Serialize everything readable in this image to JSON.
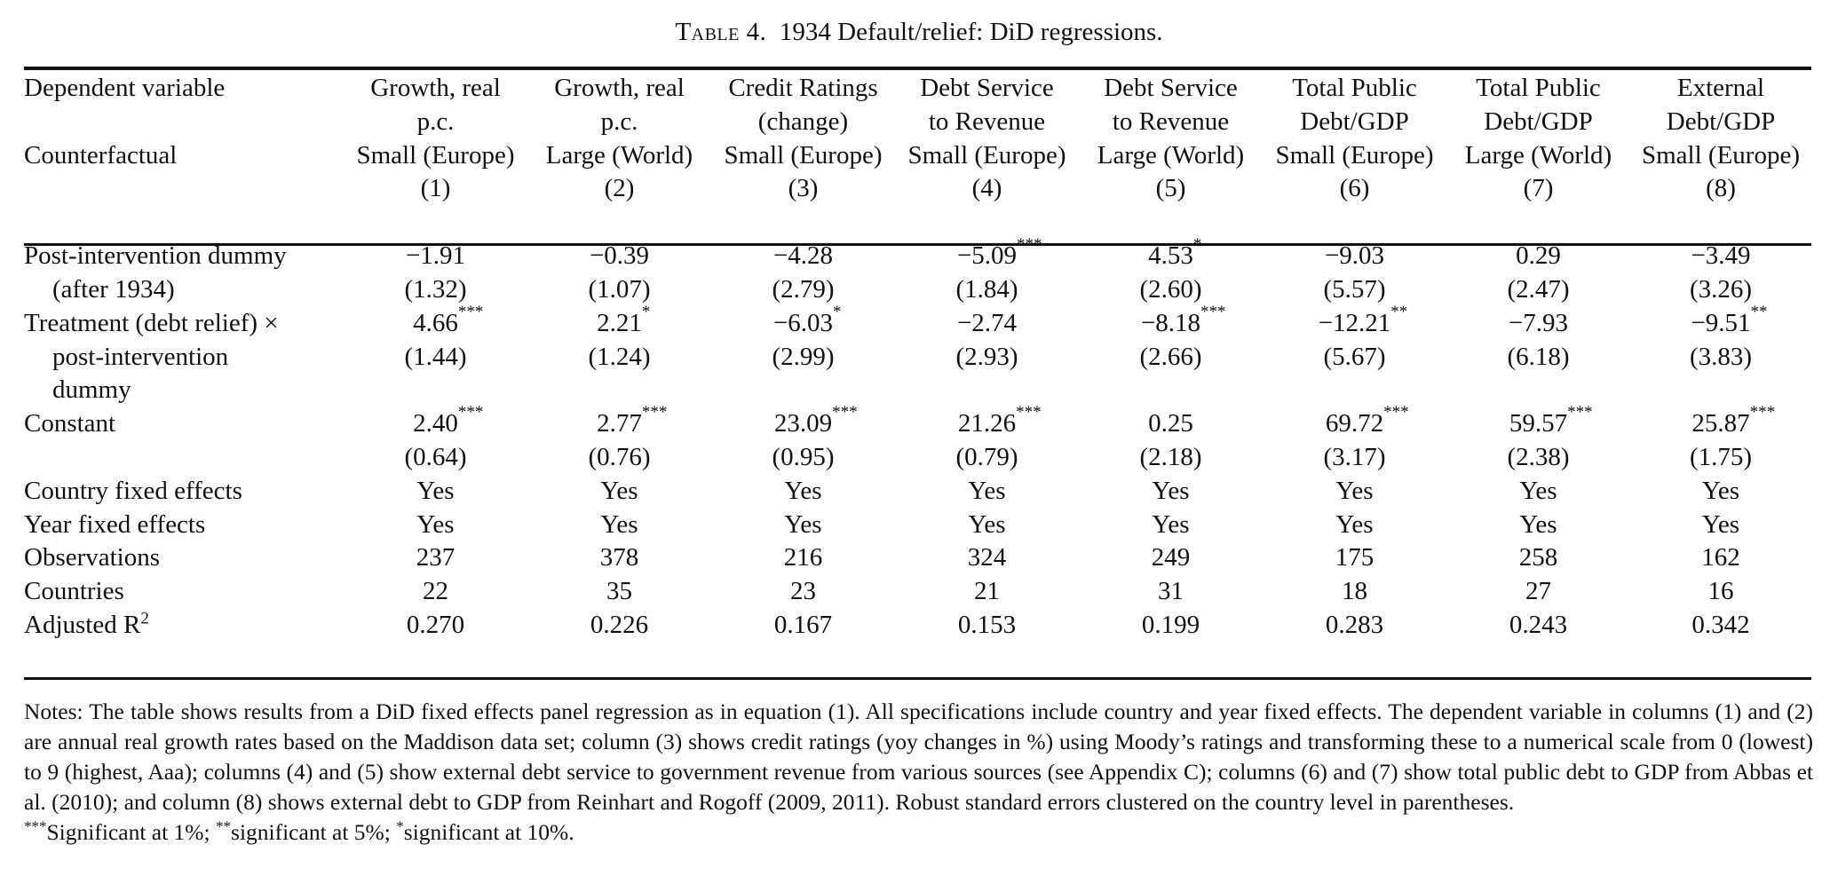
{
  "caption": {
    "label": "Table 4.",
    "title": "1934 Default/relief: DiD regressions."
  },
  "header": {
    "dep_label": "Dependent variable",
    "cf_label": "Counterfactual",
    "columns": [
      {
        "dep1": "Growth, real",
        "dep2": "p.c.",
        "cf": "Small (Europe)",
        "num": "(1)"
      },
      {
        "dep1": "Growth, real",
        "dep2": "p.c.",
        "cf": "Large (World)",
        "num": "(2)"
      },
      {
        "dep1": "Credit Ratings",
        "dep2": "(change)",
        "cf": "Small (Europe)",
        "num": "(3)"
      },
      {
        "dep1": "Debt Service",
        "dep2": "to Revenue",
        "cf": "Small (Europe)",
        "num": "(4)"
      },
      {
        "dep1": "Debt Service",
        "dep2": "to Revenue",
        "cf": "Large (World)",
        "num": "(5)"
      },
      {
        "dep1": "Total Public",
        "dep2": "Debt/GDP",
        "cf": "Small (Europe)",
        "num": "(6)"
      },
      {
        "dep1": "Total Public",
        "dep2": "Debt/GDP",
        "cf": "Large (World)",
        "num": "(7)"
      },
      {
        "dep1": "External",
        "dep2": "Debt/GDP",
        "cf": "Small (Europe)",
        "num": "(8)"
      }
    ]
  },
  "coef_rows": [
    {
      "label1": "Post-intervention dummy",
      "label2": "(after 1934)",
      "label3": "",
      "coef": [
        {
          "v": "−1.91",
          "s": ""
        },
        {
          "v": "−0.39",
          "s": ""
        },
        {
          "v": "−4.28",
          "s": ""
        },
        {
          "v": "−5.09",
          "s": "***"
        },
        {
          "v": "4.53",
          "s": "*"
        },
        {
          "v": "−9.03",
          "s": ""
        },
        {
          "v": "0.29",
          "s": ""
        },
        {
          "v": "−3.49",
          "s": ""
        }
      ],
      "se": [
        "(1.32)",
        "(1.07)",
        "(2.79)",
        "(1.84)",
        "(2.60)",
        "(5.57)",
        "(2.47)",
        "(3.26)"
      ]
    },
    {
      "label1": "Treatment (debt relief) ×",
      "label2": "post-intervention",
      "label3": "dummy",
      "coef": [
        {
          "v": "4.66",
          "s": "***"
        },
        {
          "v": "2.21",
          "s": "*"
        },
        {
          "v": "−6.03",
          "s": "*"
        },
        {
          "v": "−2.74",
          "s": ""
        },
        {
          "v": "−8.18",
          "s": "***"
        },
        {
          "v": "−12.21",
          "s": "**"
        },
        {
          "v": "−7.93",
          "s": ""
        },
        {
          "v": "−9.51",
          "s": "**"
        }
      ],
      "se": [
        "(1.44)",
        "(1.24)",
        "(2.99)",
        "(2.93)",
        "(2.66)",
        "(5.67)",
        "(6.18)",
        "(3.83)"
      ]
    },
    {
      "label1": "Constant",
      "label2": "",
      "label3": "",
      "coef": [
        {
          "v": "2.40",
          "s": "***"
        },
        {
          "v": "2.77",
          "s": "***"
        },
        {
          "v": "23.09",
          "s": "***"
        },
        {
          "v": "21.26",
          "s": "***"
        },
        {
          "v": "0.25",
          "s": ""
        },
        {
          "v": "69.72",
          "s": "***"
        },
        {
          "v": "59.57",
          "s": "***"
        },
        {
          "v": "25.87",
          "s": "***"
        }
      ],
      "se": [
        "(0.64)",
        "(0.76)",
        "(0.95)",
        "(0.79)",
        "(2.18)",
        "(3.17)",
        "(2.38)",
        "(1.75)"
      ]
    }
  ],
  "stat_rows": [
    {
      "label": "Country fixed effects",
      "sup": "",
      "values": [
        "Yes",
        "Yes",
        "Yes",
        "Yes",
        "Yes",
        "Yes",
        "Yes",
        "Yes"
      ]
    },
    {
      "label": "Year fixed effects",
      "sup": "",
      "values": [
        "Yes",
        "Yes",
        "Yes",
        "Yes",
        "Yes",
        "Yes",
        "Yes",
        "Yes"
      ]
    },
    {
      "label": "Observations",
      "sup": "",
      "values": [
        "237",
        "378",
        "216",
        "324",
        "249",
        "175",
        "258",
        "162"
      ]
    },
    {
      "label": "Countries",
      "sup": "",
      "values": [
        "22",
        "35",
        "23",
        "21",
        "31",
        "18",
        "27",
        "16"
      ]
    },
    {
      "label": "Adjusted R",
      "sup": "2",
      "values": [
        "0.270",
        "0.226",
        "0.167",
        "0.153",
        "0.199",
        "0.283",
        "0.243",
        "0.342"
      ]
    }
  ],
  "notes": {
    "text": "Notes: The table shows results from a DiD fixed effects panel regression as in equation (1). All specifications include country and year fixed effects. The dependent variable in columns (1) and (2) are annual real growth rates based on the Maddison data set; column (3) shows credit ratings (yoy changes in %) using Moody’s ratings and transforming these to a numerical scale from 0 (lowest) to 9 (highest, Aaa); columns (4) and (5) show external debt service to government revenue from various sources (see Appendix C); columns (6) and (7) show total public debt to GDP from Abbas et al. (2010); and column (8) shows external debt to GDP from Reinhart and Rogoff (2009, 2011). Robust standard errors clustered on the country level in parentheses.",
    "sig": [
      {
        "mark": "***",
        "text": "Significant at 1%; "
      },
      {
        "mark": "**",
        "text": "significant at 5%; "
      },
      {
        "mark": "*",
        "text": "significant at 10%."
      }
    ]
  }
}
